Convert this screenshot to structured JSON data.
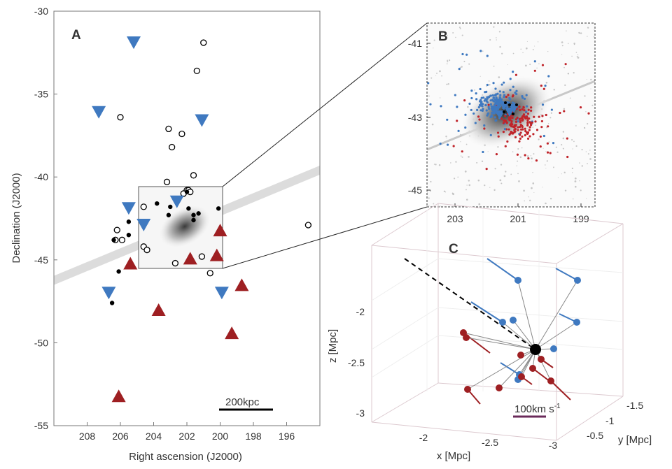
{
  "colors": {
    "blue": "#3f79c0",
    "red": "#9e1f22",
    "black": "#000000",
    "band": "#d9d9d9",
    "frame": "#555555"
  },
  "chart_data": [
    {
      "panel": "A",
      "type": "scatter",
      "panel_label": "A",
      "xlabel": "Right ascension (J2000)",
      "ylabel": "Declination (J2000)",
      "xlim": [
        210,
        194
      ],
      "ylim": [
        -55,
        -30
      ],
      "xticks": [
        "208",
        "206",
        "204",
        "202",
        "200",
        "198",
        "196"
      ],
      "yticks": [
        "-30",
        "-35",
        "-40",
        "-45",
        "-50",
        "-55"
      ],
      "scale_bar": "200kpc",
      "series": [
        {
          "marker": "open-circle",
          "color": "#000000",
          "points": [
            [
              201.0,
              -31.9
            ],
            [
              201.4,
              -33.6
            ],
            [
              206.0,
              -36.4
            ],
            [
              203.1,
              -37.1
            ],
            [
              202.3,
              -37.4
            ],
            [
              202.9,
              -38.2
            ],
            [
              201.6,
              -39.9
            ],
            [
              203.2,
              -40.3
            ],
            [
              202.0,
              -40.8
            ],
            [
              201.9,
              -40.8
            ],
            [
              201.8,
              -40.9
            ],
            [
              202.2,
              -41.0
            ],
            [
              204.6,
              -41.8
            ],
            [
              206.2,
              -43.2
            ],
            [
              205.9,
              -43.8
            ],
            [
              206.3,
              -43.8
            ],
            [
              204.6,
              -44.2
            ],
            [
              204.4,
              -44.4
            ],
            [
              201.1,
              -44.8
            ],
            [
              202.7,
              -45.2
            ],
            [
              200.6,
              -45.8
            ],
            [
              194.7,
              -42.9
            ]
          ]
        },
        {
          "marker": "filled-circle",
          "color": "#000000",
          "points": [
            [
              203.8,
              -41.6
            ],
            [
              203.0,
              -41.8
            ],
            [
              203.1,
              -42.3
            ],
            [
              201.9,
              -41.9
            ],
            [
              201.6,
              -42.3
            ],
            [
              201.6,
              -42.6
            ],
            [
              201.3,
              -42.2
            ],
            [
              200.1,
              -41.9
            ],
            [
              205.5,
              -42.7
            ],
            [
              205.5,
              -43.5
            ],
            [
              206.4,
              -43.8
            ],
            [
              206.1,
              -45.7
            ],
            [
              206.5,
              -47.6
            ],
            [
              202.5,
              -41.3
            ],
            [
              202.0,
              -40.9
            ]
          ]
        },
        {
          "marker": "down-triangle",
          "color": "#3f79c0",
          "points": [
            [
              205.2,
              -31.9
            ],
            [
              207.3,
              -36.1
            ],
            [
              201.1,
              -36.6
            ],
            [
              205.5,
              -41.9
            ],
            [
              204.6,
              -42.9
            ],
            [
              202.6,
              -41.5
            ],
            [
              206.7,
              -47.0
            ],
            [
              199.9,
              -47.0
            ]
          ]
        },
        {
          "marker": "up-triangle",
          "color": "#9e1f22",
          "points": [
            [
              205.4,
              -45.2
            ],
            [
              200.0,
              -43.2
            ],
            [
              200.2,
              -44.7
            ],
            [
              201.8,
              -44.9
            ],
            [
              203.7,
              -48.0
            ],
            [
              198.7,
              -46.5
            ],
            [
              199.3,
              -49.4
            ],
            [
              206.1,
              -53.2
            ]
          ]
        }
      ]
    },
    {
      "panel": "B",
      "type": "scatter",
      "panel_label": "B",
      "xticks": [
        "203",
        "201",
        "199"
      ],
      "yticks": [
        "-41",
        "-43",
        "-45"
      ]
    },
    {
      "panel": "C",
      "type": "scatter",
      "panel_label": "C",
      "xlabel": "x [Mpc]",
      "ylabel": "y [Mpc]",
      "zlabel": "z [Mpc]",
      "xticks": [
        "-2",
        "-2.5",
        "-3"
      ],
      "yticks": [
        "-1.5",
        "-1",
        "-0.5"
      ],
      "zticks": [
        "-2",
        "-2.5",
        "-3"
      ],
      "velocity_bar": "100km s",
      "velocity_bar_exp": "-1"
    }
  ]
}
